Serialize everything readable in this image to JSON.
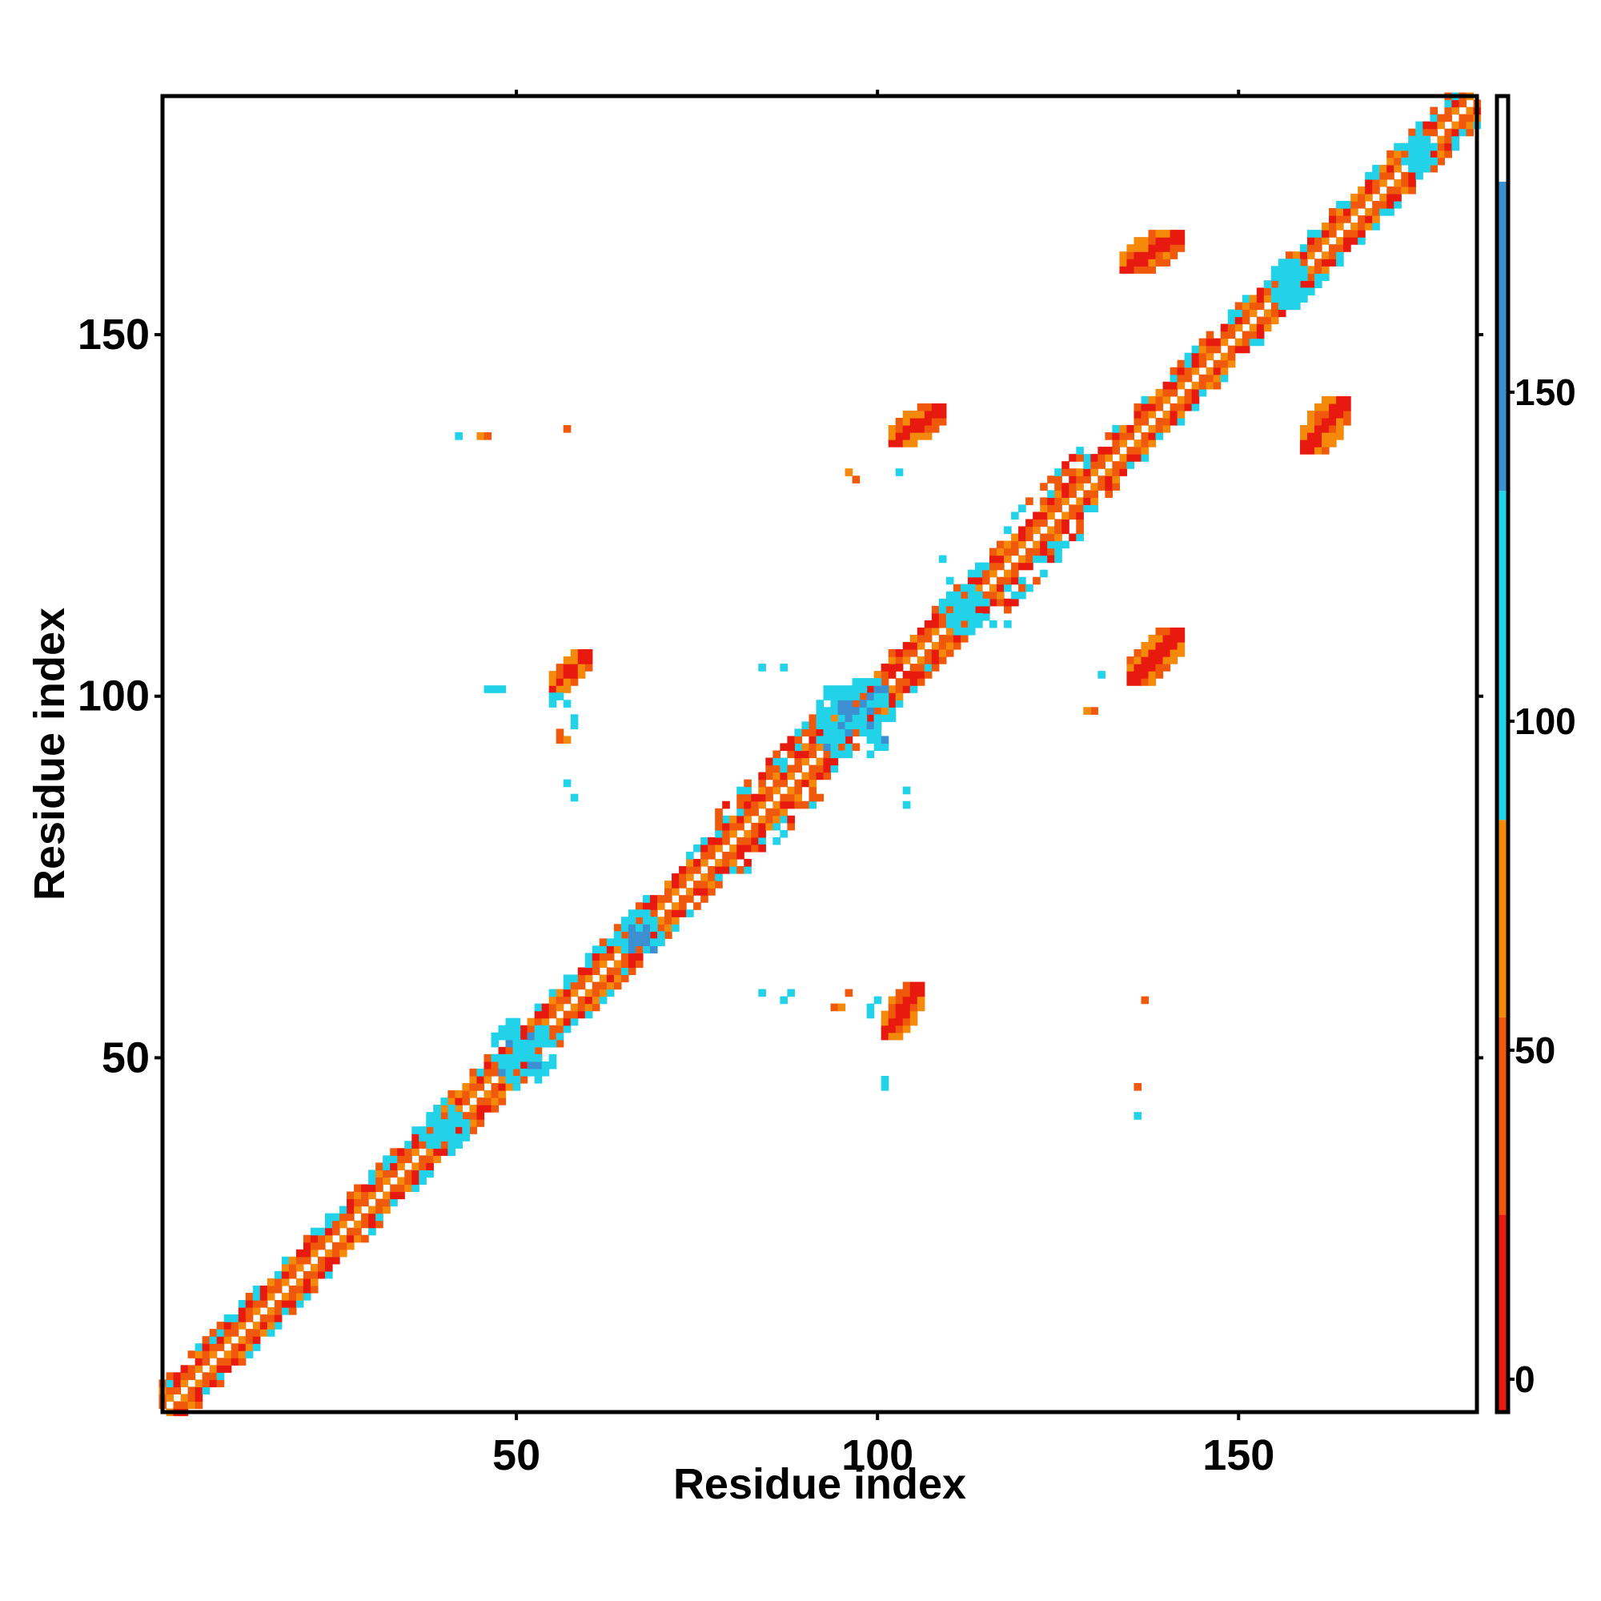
{
  "chart_data": {
    "type": "heatmap",
    "title": "",
    "xlabel": "Residue index",
    "ylabel": "Residue index",
    "xlim": [
      1,
      183
    ],
    "ylim": [
      1,
      183
    ],
    "x_ticks": [
      50,
      100,
      150
    ],
    "y_ticks": [
      50,
      100,
      150
    ],
    "colorbar": {
      "range": [
        -5,
        195
      ],
      "ticks": [
        0,
        50,
        100,
        150
      ],
      "stops": [
        {
          "from": -5,
          "to": 25,
          "color": "#e8190e"
        },
        {
          "from": 25,
          "to": 55,
          "color": "#f0580c"
        },
        {
          "from": 55,
          "to": 85,
          "color": "#f58a0a"
        },
        {
          "from": 85,
          "to": 135,
          "color": "#22d2e8"
        },
        {
          "from": 135,
          "to": 182,
          "color": "#3c8fd0"
        },
        {
          "from": 182,
          "to": 195,
          "color": "#ffffff"
        }
      ]
    },
    "description_regions": [
      {
        "kind": "diagonal_band",
        "range": [
          1,
          183
        ],
        "colors": [
          "#e8190e",
          "#f58a0a",
          "#22d2e8"
        ]
      },
      {
        "kind": "patch",
        "x": [
          55,
          60
        ],
        "y": [
          101,
          106
        ],
        "color": "#e8190e"
      },
      {
        "kind": "patch",
        "x": [
          101,
          106
        ],
        "y": [
          53,
          60
        ],
        "color": "#e8190e"
      },
      {
        "kind": "patch",
        "x": [
          102,
          109
        ],
        "y": [
          135,
          140
        ],
        "color": "#e8190e"
      },
      {
        "kind": "patch",
        "x": [
          135,
          142
        ],
        "y": [
          102,
          109
        ],
        "color": "#e8190e"
      },
      {
        "kind": "patch",
        "x": [
          134,
          142
        ],
        "y": [
          159,
          164
        ],
        "color": "#e8190e"
      },
      {
        "kind": "patch",
        "x": [
          159,
          165
        ],
        "y": [
          134,
          141
        ],
        "color": "#e8190e"
      }
    ]
  }
}
